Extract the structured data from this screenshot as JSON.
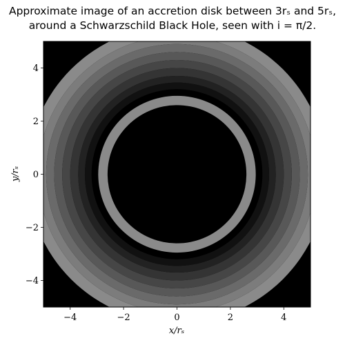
{
  "chart_data": {
    "type": "heatmap",
    "title_line1": "Approximate image of an accretion disk between 3rₛ and 5rₛ,",
    "title_line2": "around a Schwarzschild Black Hole, seen with i = π/2.",
    "xlabel": "x/rₛ",
    "ylabel": "y/rₛ",
    "xlim": [
      -5,
      5
    ],
    "ylim": [
      -5,
      5
    ],
    "xticks": [
      -4,
      -2,
      0,
      2,
      4
    ],
    "yticks": [
      -4,
      -2,
      0,
      2,
      4
    ],
    "xtick_labels": [
      "−4",
      "−2",
      "0",
      "2",
      "4"
    ],
    "ytick_labels": [
      "−4",
      "−2",
      "0",
      "2",
      "4"
    ],
    "grid": false,
    "background_color": "#000000",
    "rings": [
      {
        "r_outer": 5.6,
        "r_inner": 5.2,
        "color": "#8a8a8a"
      },
      {
        "r_outer": 5.2,
        "r_inner": 4.9,
        "color": "#7c7c7c"
      },
      {
        "r_outer": 4.9,
        "r_inner": 4.6,
        "color": "#6a6a6a"
      },
      {
        "r_outer": 4.6,
        "r_inner": 4.3,
        "color": "#585858"
      },
      {
        "r_outer": 4.3,
        "r_inner": 4.0,
        "color": "#464646"
      },
      {
        "r_outer": 4.0,
        "r_inner": 3.7,
        "color": "#343434"
      },
      {
        "r_outer": 3.7,
        "r_inner": 3.45,
        "color": "#222222"
      },
      {
        "r_outer": 3.45,
        "r_inner": 3.2,
        "color": "#111111"
      },
      {
        "r_outer": 2.95,
        "r_inner": 2.6,
        "color": "#8a8a8a"
      }
    ]
  }
}
